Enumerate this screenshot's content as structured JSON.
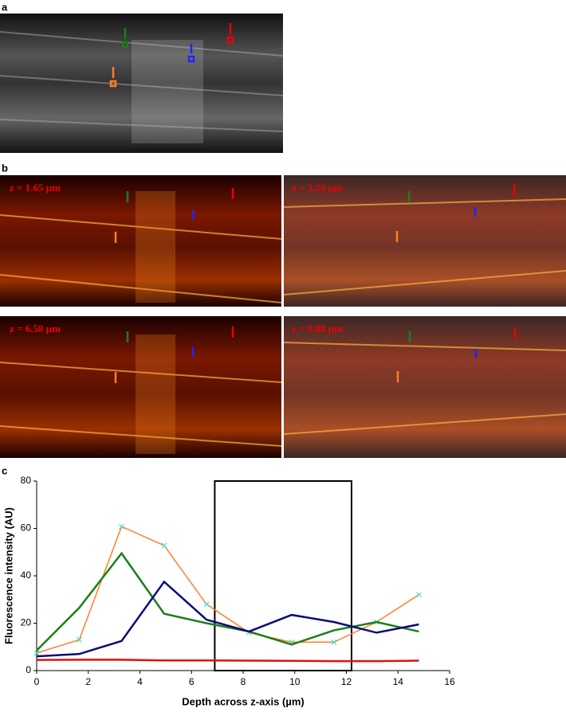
{
  "figure": {
    "panel_labels": [
      "a",
      "b",
      "c"
    ],
    "z_labels": [
      "z = 1.65 µm",
      "z = 3.29 µm",
      "z = 6.58 µm",
      "z = 9.88 µm"
    ]
  },
  "chart_data": {
    "type": "line",
    "x_label": "Depth across z-axis (µm)",
    "y_label": "Fluorescence intensity (AU)",
    "x": [
      0,
      1.65,
      3.29,
      4.94,
      6.58,
      8.23,
      9.88,
      11.52,
      13.17,
      14.81
    ],
    "series": [
      {
        "color": "#ff7f27",
        "marker_color": "#40e0d0",
        "values": [
          7.4,
          13,
          60.8,
          52.8,
          28,
          16,
          12,
          12,
          20.5,
          32
        ]
      },
      {
        "color": "#1a7f1a",
        "values": [
          8.5,
          26.5,
          49.5,
          24,
          20,
          16.5,
          11,
          17,
          20.5,
          16.5
        ]
      },
      {
        "color": "#0a0a78",
        "values": [
          6,
          7,
          12.5,
          37.5,
          21.5,
          16.5,
          23.5,
          20.5,
          16,
          19.5
        ]
      },
      {
        "color": "#e01010",
        "values": [
          4.5,
          4.6,
          4.6,
          4.3,
          4.3,
          4.2,
          4.1,
          4,
          4,
          4.2
        ]
      }
    ],
    "highlight_range": [
      6.9,
      12.2
    ],
    "xlim": [
      0,
      16
    ],
    "xticks": [
      0,
      2,
      4,
      6,
      8,
      10,
      12,
      14,
      16
    ],
    "ylim": [
      0,
      80
    ],
    "yticks": [
      0,
      20,
      40,
      60,
      80
    ],
    "grid": false
  }
}
